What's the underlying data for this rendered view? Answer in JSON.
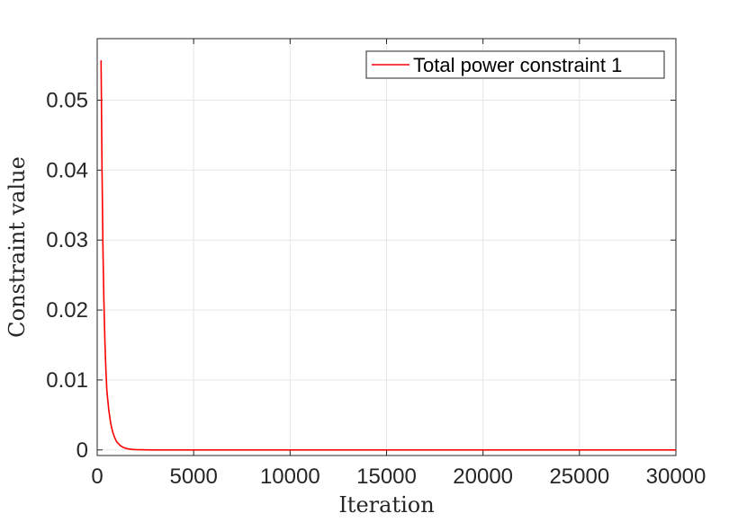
{
  "chart_data": {
    "type": "line",
    "title": "",
    "xlabel": "Iteration",
    "ylabel": "Constraint value",
    "xlim": [
      0,
      30000
    ],
    "ylim": [
      -0.0008,
      0.0588
    ],
    "grid": true,
    "legend_position": "top-right",
    "x_ticks": [
      0,
      5000,
      10000,
      15000,
      20000,
      25000,
      30000
    ],
    "x_tick_labels": [
      "0",
      "5000",
      "10000",
      "15000",
      "20000",
      "25000",
      "30000"
    ],
    "y_ticks": [
      0,
      0.01,
      0.02,
      0.03,
      0.04,
      0.05
    ],
    "y_tick_labels": [
      "0",
      "0.01",
      "0.02",
      "0.03",
      "0.04",
      "0.05"
    ],
    "series": [
      {
        "name": "Total power constraint 1",
        "color": "#ff0000",
        "x": [
          200,
          250,
          300,
          350,
          400,
          450,
          500,
          600,
          700,
          800,
          900,
          1000,
          1200,
          1400,
          1600,
          1800,
          2000,
          2500,
          3000,
          5000,
          10000,
          15000,
          20000,
          25000,
          30000
        ],
        "y": [
          0.0557,
          0.04,
          0.0285,
          0.021,
          0.0155,
          0.0115,
          0.0085,
          0.0057,
          0.0038,
          0.0026,
          0.0018,
          0.0012,
          0.0006,
          0.0003,
          0.00015,
          8e-05,
          4e-05,
          1e-05,
          0,
          0,
          0,
          0,
          0,
          0,
          0
        ]
      }
    ]
  }
}
